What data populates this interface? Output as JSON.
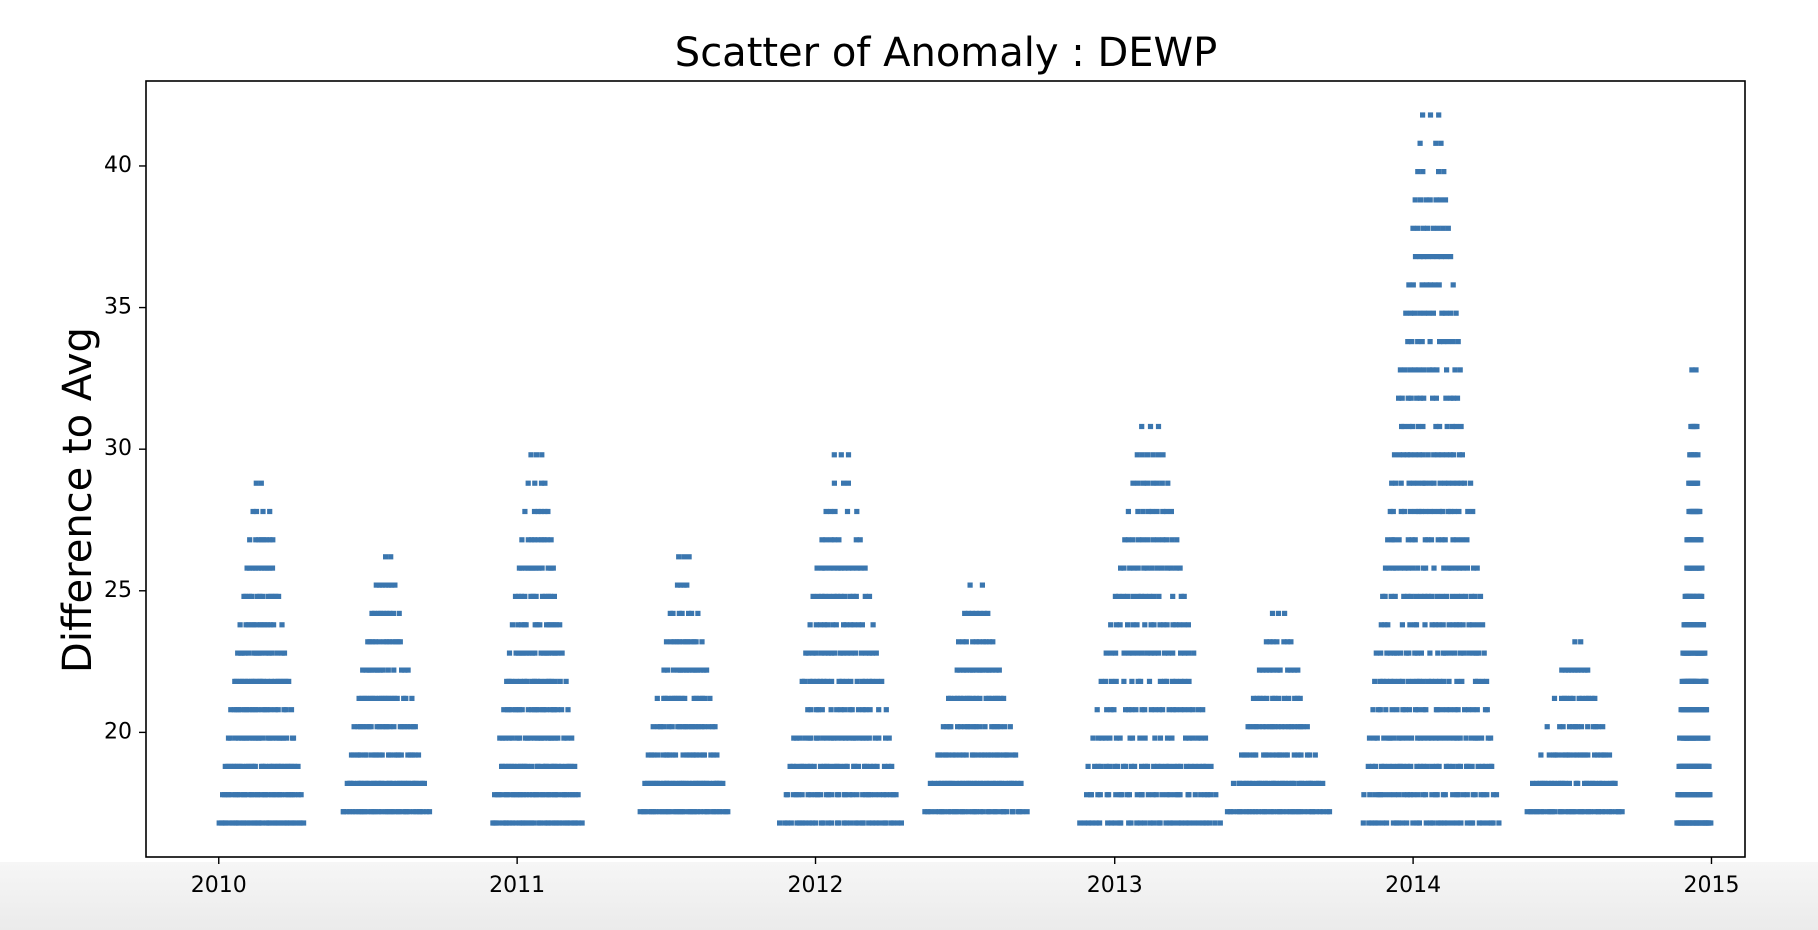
{
  "chart_data": {
    "type": "scatter",
    "title": "Scatter of Anomaly : DEWP",
    "xlabel": "",
    "ylabel": "Difference to Avg",
    "xlim": [
      "2009-10-04",
      "2015-02-11"
    ],
    "ylim": [
      15.6,
      43.0
    ],
    "x_ticks": [
      "2010",
      "2011",
      "2012",
      "2013",
      "2014",
      "2015"
    ],
    "y_ticks": [
      "20",
      "25",
      "30",
      "35",
      "40"
    ],
    "marker_color": "#3a76af",
    "grid": false,
    "series": [
      {
        "clusters": [
          {
            "start": "2010-01-01",
            "end": "2010-04-15",
            "levels": [
              16.8,
              17.8,
              18.8,
              19.8,
              20.8,
              21.8,
              22.8,
              23.8,
              24.8,
              25.8,
              26.8,
              27.8,
              28.8
            ]
          },
          {
            "start": "2010-06-01",
            "end": "2010-09-15",
            "levels": [
              17.2,
              18.2,
              19.2,
              20.2,
              21.2,
              22.2,
              23.2,
              24.2,
              25.2,
              26.2
            ]
          },
          {
            "start": "2010-12-01",
            "end": "2011-03-20",
            "levels": [
              16.8,
              17.8,
              18.8,
              19.8,
              20.8,
              21.8,
              22.8,
              23.8,
              24.8,
              25.8,
              26.8,
              27.8,
              28.8,
              29.8
            ]
          },
          {
            "start": "2011-06-01",
            "end": "2011-09-15",
            "levels": [
              17.2,
              18.2,
              19.2,
              20.2,
              21.2,
              22.2,
              23.2,
              24.2,
              25.2,
              26.2
            ]
          },
          {
            "start": "2011-11-20",
            "end": "2012-04-15",
            "levels": [
              16.8,
              17.8,
              18.8,
              19.8,
              20.8,
              21.8,
              22.8,
              23.8,
              24.8,
              25.8,
              26.8,
              27.8,
              28.8,
              29.8
            ]
          },
          {
            "start": "2012-05-15",
            "end": "2012-09-15",
            "levels": [
              17.2,
              18.2,
              19.2,
              20.2,
              21.2,
              22.2,
              23.2,
              24.2,
              25.2
            ]
          },
          {
            "start": "2012-11-20",
            "end": "2013-05-10",
            "levels": [
              16.8,
              17.8,
              18.8,
              19.8,
              20.8,
              21.8,
              22.8,
              23.8,
              24.8,
              25.8,
              26.8,
              27.8,
              28.8,
              29.8,
              30.8
            ]
          },
          {
            "start": "2013-05-20",
            "end": "2013-09-20",
            "levels": [
              17.2,
              18.2,
              19.2,
              20.2,
              21.2,
              22.2,
              23.2,
              24.2
            ]
          },
          {
            "start": "2013-11-01",
            "end": "2014-04-15",
            "levels": [
              16.8,
              17.8,
              18.8,
              19.8,
              20.8,
              21.8,
              22.8,
              23.8,
              24.8,
              25.8,
              26.8,
              27.8,
              28.8,
              29.8,
              30.8,
              31.8,
              32.8,
              33.8,
              34.8,
              35.8,
              36.8,
              37.8,
              38.8,
              39.8,
              40.8,
              41.8
            ]
          },
          {
            "start": "2014-05-20",
            "end": "2014-09-15",
            "levels": [
              17.2,
              18.2,
              19.2,
              20.2,
              21.2,
              22.2,
              23.2
            ]
          },
          {
            "start": "2014-11-20",
            "end": "2014-12-31",
            "levels": [
              16.8,
              17.8,
              18.8,
              19.8,
              20.8,
              21.8,
              22.8,
              23.8,
              24.8,
              25.8,
              26.8,
              27.8,
              28.8,
              29.8,
              30.8,
              32.8
            ]
          }
        ]
      }
    ]
  }
}
